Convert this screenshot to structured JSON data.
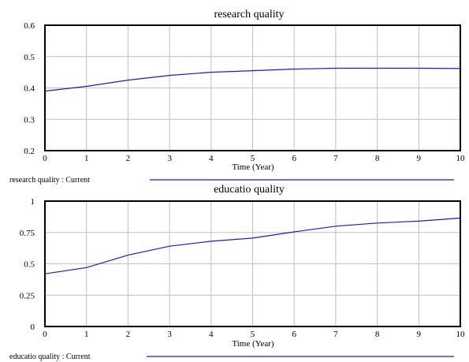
{
  "chart_data": [
    {
      "type": "line",
      "title": "research quality",
      "xlabel": "Time (Year)",
      "ylabel": "",
      "xlim": [
        0,
        10
      ],
      "ylim": [
        0.2,
        0.6
      ],
      "x_ticks": [
        "0",
        "1",
        "2",
        "3",
        "4",
        "5",
        "6",
        "7",
        "8",
        "9",
        "10"
      ],
      "y_ticks": [
        "0.2",
        "0.3",
        "0.4",
        "0.5",
        "0.6"
      ],
      "grid": true,
      "legend_position": "bottom",
      "series": [
        {
          "name": "research quality : Current",
          "color": "#1a1ad6",
          "x": [
            0,
            1,
            2,
            3,
            4,
            5,
            6,
            7,
            8,
            9,
            10
          ],
          "values": [
            0.39,
            0.405,
            0.425,
            0.44,
            0.45,
            0.455,
            0.46,
            0.463,
            0.463,
            0.463,
            0.462
          ]
        }
      ]
    },
    {
      "type": "line",
      "title": "educatio quality",
      "xlabel": "Time (Year)",
      "ylabel": "",
      "xlim": [
        0,
        10
      ],
      "ylim": [
        0,
        1
      ],
      "x_ticks": [
        "0",
        "1",
        "2",
        "3",
        "4",
        "5",
        "6",
        "7",
        "8",
        "9",
        "10"
      ],
      "y_ticks": [
        "0",
        "0.25",
        "0.5",
        "0.75",
        "1"
      ],
      "grid": true,
      "legend_position": "bottom",
      "series": [
        {
          "name": "educatio quality : Current",
          "color": "#1a1ad6",
          "x": [
            0,
            1,
            2,
            3,
            4,
            5,
            6,
            7,
            8,
            9,
            10
          ],
          "values": [
            0.42,
            0.47,
            0.57,
            0.64,
            0.68,
            0.705,
            0.755,
            0.8,
            0.825,
            0.84,
            0.865
          ]
        }
      ]
    }
  ]
}
